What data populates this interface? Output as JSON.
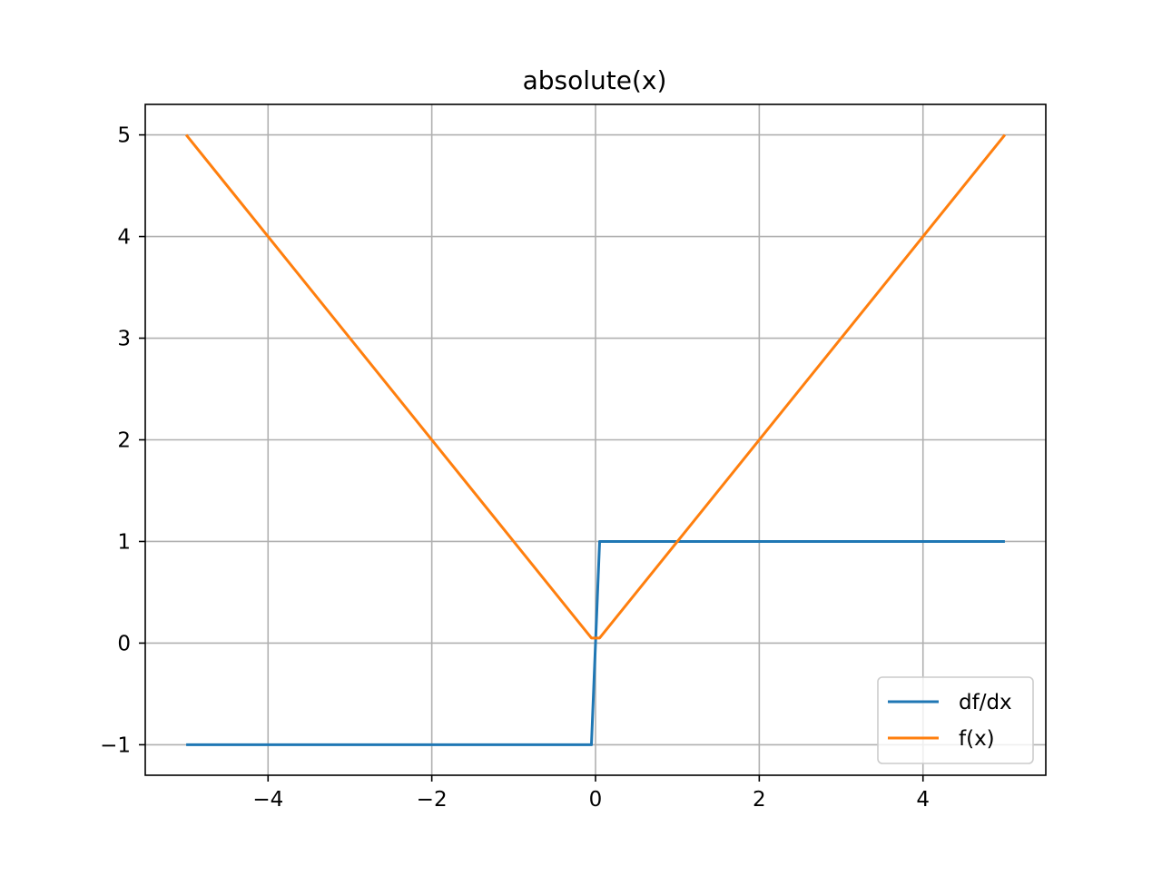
{
  "chart_data": {
    "type": "line",
    "title": "absolute(x)",
    "xlabel": "",
    "ylabel": "",
    "xlim": [
      -5.5,
      5.5
    ],
    "ylim": [
      -1.3,
      5.3
    ],
    "xticks": [
      -4,
      -2,
      0,
      2,
      4
    ],
    "xtick_labels": [
      "−4",
      "−2",
      "0",
      "2",
      "4"
    ],
    "yticks": [
      -1,
      0,
      1,
      2,
      3,
      4,
      5
    ],
    "ytick_labels": [
      "−1",
      "0",
      "1",
      "2",
      "3",
      "4",
      "5"
    ],
    "grid": true,
    "legend_position": "lower right",
    "series": [
      {
        "name": "df/dx",
        "color": "#1f77b4",
        "x": [
          -5,
          -0.05,
          0.05,
          5
        ],
        "y": [
          -1,
          -1,
          1,
          1
        ]
      },
      {
        "name": "f(x)",
        "color": "#ff7f0e",
        "x": [
          -5,
          -0.05,
          0.05,
          5
        ],
        "y": [
          5,
          0.05,
          0.05,
          5
        ]
      }
    ]
  }
}
